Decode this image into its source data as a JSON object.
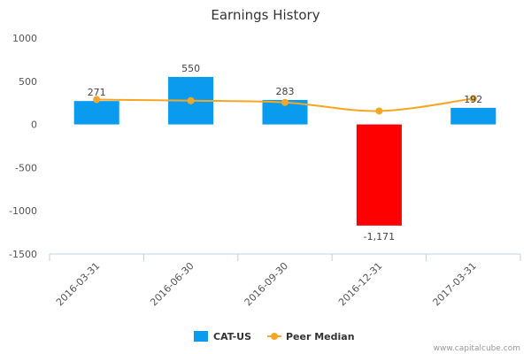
{
  "chart_data": {
    "type": "bar",
    "title": "Earnings History",
    "xlabel": "",
    "ylabel": "",
    "categories": [
      "2016-03-31",
      "2016-06-30",
      "2016-09-30",
      "2016-12-31",
      "2017-03-31"
    ],
    "ylim": [
      -1500,
      1000
    ],
    "yticks": [
      1000,
      500,
      0,
      -500,
      -1000,
      -1500
    ],
    "series": [
      {
        "name": "CAT-US",
        "type": "bar",
        "values": [
          271,
          550,
          283,
          -1171,
          192
        ],
        "labels": [
          "271",
          "550",
          "283",
          "-1,171",
          "192"
        ],
        "color": "#0a9bef",
        "negative_color": "#ff0000"
      },
      {
        "name": "Peer Median",
        "type": "line",
        "values": [
          288,
          275,
          255,
          155,
          300
        ],
        "color": "#f5a623"
      }
    ],
    "grid": false,
    "legend": "bottom-center"
  },
  "credit": "www.capitalcube.com"
}
